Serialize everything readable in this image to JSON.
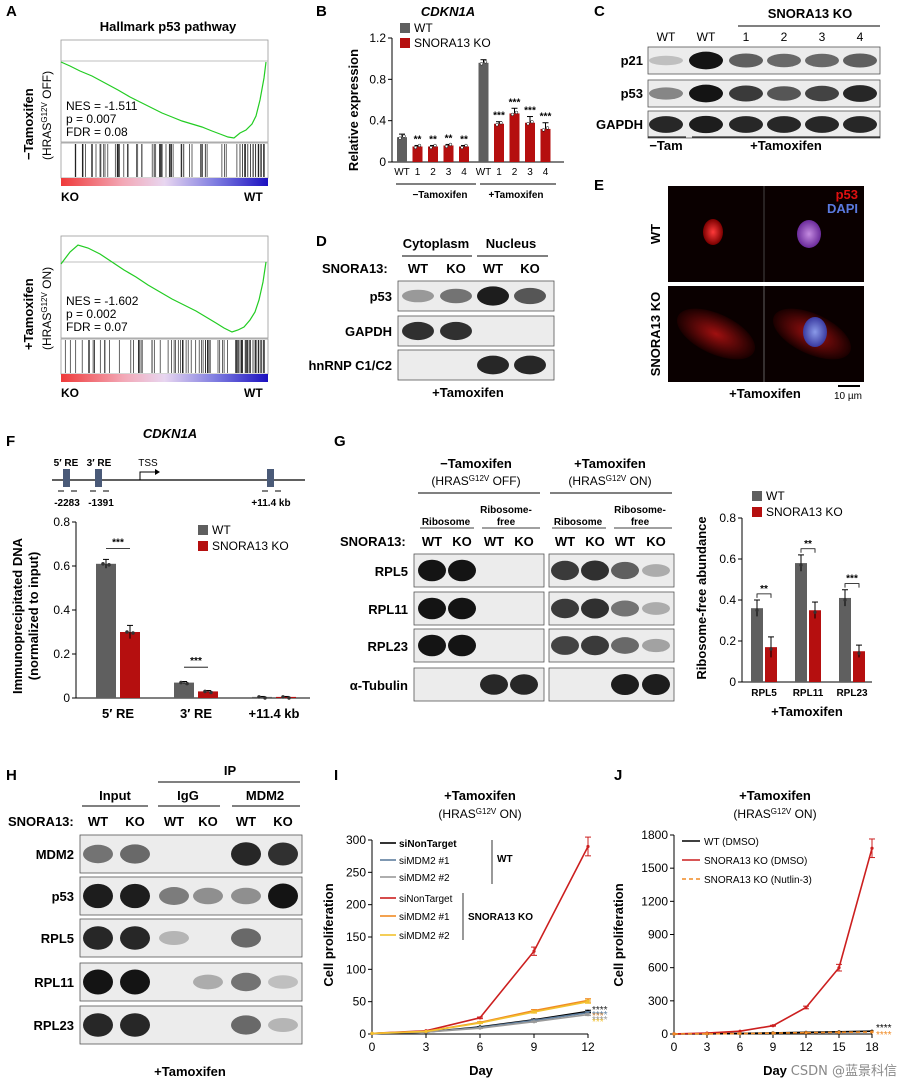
{
  "panels": {
    "A": {
      "letter": "A",
      "title": "Hallmark p53 pathway",
      "top": {
        "side_label_1": "−Tamoxifen",
        "side_label_2": "(HRAS",
        "side_label_sup": "G12V",
        "side_label_3": " OFF)",
        "nes": "NES = -1.511",
        "p": "p = 0.007",
        "fdr": "FDR = 0.08"
      },
      "bottom": {
        "side_label_1": "+Tamoxifen",
        "side_label_2": "(HRAS",
        "side_label_sup": "G12V",
        "side_label_3": " ON)",
        "nes": "NES = -1.602",
        "p": "p = 0.002",
        "fdr": "FDR = 0.07"
      },
      "ko": "KO",
      "wt": "WT"
    },
    "B": {
      "letter": "B",
      "gene": "CDKN1A",
      "ylabel": "Relative expression",
      "legend": [
        "WT",
        "SNORA13 KO"
      ],
      "group_labels": [
        "−Tamoxifen",
        "+Tamoxifen"
      ],
      "sig_minus": "**",
      "sig_plus": "***"
    },
    "C": {
      "letter": "C",
      "header_ko": "SNORA13 KO",
      "lanes": [
        "WT",
        "WT",
        "1",
        "2",
        "3",
        "4"
      ],
      "rows": [
        "p21",
        "p53",
        "GAPDH"
      ],
      "minus_tam": "−Tam",
      "plus_tam": "+Tamoxifen"
    },
    "D": {
      "letter": "D",
      "cytoplasm": "Cytoplasm",
      "nucleus": "Nucleus",
      "snora13": "SNORA13:",
      "lanes": [
        "WT",
        "KO",
        "WT",
        "KO"
      ],
      "rows": [
        "p53",
        "GAPDH",
        "hnRNP C1/C2"
      ],
      "condition": "+Tamoxifen"
    },
    "E": {
      "letter": "E",
      "wt": "WT",
      "ko": "SNORA13 KO",
      "p53": "p53",
      "dapi": "DAPI",
      "condition": "+Tamoxifen",
      "scale": "10 µm"
    },
    "F": {
      "letter": "F",
      "gene": "CDKN1A",
      "re5": "5′ RE",
      "re3": "3′ RE",
      "tss": "TSS",
      "pos1": "-2283",
      "pos2": "-1391",
      "pos3": "+11.4 kb",
      "ylabel1": "Immunoprecipitated DNA",
      "ylabel2": "(normalized to input)",
      "legend": [
        "WT",
        "SNORA13 KO"
      ],
      "sig": "***"
    },
    "G": {
      "letter": "G",
      "minus_title": "−Tamoxifen",
      "minus_sub": "(HRAS",
      "plus_title": "+Tamoxifen",
      "plus_sub": "(HRAS",
      "sup": "G12V",
      "off": " OFF)",
      "on": " ON)",
      "ribosome": "Ribosome",
      "ribofree1": "Ribosome-",
      "ribofree2": "free",
      "snora13": "SNORA13:",
      "lanes": [
        "WT",
        "KO",
        "WT",
        "KO"
      ],
      "rows": [
        "RPL5",
        "RPL11",
        "RPL23",
        "α-Tubulin"
      ],
      "ylabel": "Ribosome-free abundance",
      "legend": [
        "WT",
        "SNORA13 KO"
      ],
      "condition": "+Tamoxifen",
      "sig": [
        "**",
        "**",
        "***"
      ]
    },
    "H": {
      "letter": "H",
      "ip": "IP",
      "input": "Input",
      "igg": "IgG",
      "mdm2": "MDM2",
      "snora13": "SNORA13:",
      "lanes": [
        "WT",
        "KO",
        "WT",
        "KO",
        "WT",
        "KO"
      ],
      "rows": [
        "MDM2",
        "p53",
        "RPL5",
        "RPL11",
        "RPL23"
      ],
      "condition": "+Tamoxifen"
    },
    "I": {
      "letter": "I",
      "title": "+Tamoxifen",
      "sub": "(HRAS",
      "sup": "G12V",
      "on": " ON)",
      "xlabel": "Day",
      "ylabel": "Cell proliferation",
      "group_wt": "WT",
      "group_ko": "SNORA13 KO"
    },
    "J": {
      "letter": "J",
      "title": "+Tamoxifen",
      "sub": "(HRAS",
      "sup": "G12V",
      "on": " ON)",
      "xlabel": "Day",
      "ylabel": "Cell proliferation",
      "watermark": "CSDN @蓝景科信"
    }
  },
  "colors": {
    "wt": "#5f5f5f",
    "ko": "#b50f0f",
    "green": "#22cc22",
    "orange": "#f08a24",
    "yellow": "#f2c12e"
  },
  "chart_data": [
    {
      "panel": "B",
      "type": "bar",
      "categories": [
        "WT",
        "1",
        "2",
        "3",
        "4",
        "WT",
        "1",
        "2",
        "3",
        "4"
      ],
      "values": [
        0.24,
        0.15,
        0.15,
        0.16,
        0.15,
        0.96,
        0.37,
        0.47,
        0.38,
        0.32
      ],
      "groups": [
        "−Tamoxifen",
        "+Tamoxifen"
      ],
      "ylabel": "Relative expression",
      "ylim": [
        0,
        1.2
      ],
      "yticks": [
        "0",
        "0.4",
        "0.8",
        "1.2"
      ]
    },
    {
      "panel": "F",
      "type": "bar",
      "categories": [
        "5′ RE",
        "3′ RE",
        "+11.4 kb"
      ],
      "series": [
        {
          "name": "WT",
          "values": [
            0.61,
            0.07,
            0.005
          ]
        },
        {
          "name": "SNORA13 KO",
          "values": [
            0.3,
            0.03,
            0.005
          ]
        }
      ],
      "ylim": [
        0,
        0.8
      ],
      "yticks": [
        "0",
        "0.2",
        "0.4",
        "0.6",
        "0.8"
      ]
    },
    {
      "panel": "G",
      "type": "bar",
      "categories": [
        "RPL5",
        "RPL11",
        "RPL23"
      ],
      "series": [
        {
          "name": "WT",
          "values": [
            0.36,
            0.58,
            0.41
          ]
        },
        {
          "name": "SNORA13 KO",
          "values": [
            0.17,
            0.35,
            0.15
          ]
        }
      ],
      "ylim": [
        0,
        0.8
      ],
      "yticks": [
        "0",
        "0.2",
        "0.4",
        "0.6",
        "0.8"
      ]
    },
    {
      "panel": "I",
      "type": "line",
      "x": [
        0,
        3,
        6,
        9,
        12
      ],
      "series": [
        {
          "name": "siNonTarget",
          "group": "WT",
          "color": "#000000",
          "values": [
            1,
            3,
            11,
            22,
            35
          ]
        },
        {
          "name": "siMDM2 #1",
          "group": "WT",
          "color": "#5f7f9f",
          "values": [
            1,
            3,
            10,
            21,
            33
          ]
        },
        {
          "name": "siMDM2 #2",
          "group": "WT",
          "color": "#9a9a9a",
          "values": [
            1,
            3,
            9,
            19,
            30
          ]
        },
        {
          "name": "siNonTarget",
          "group": "SNORA13 KO",
          "color": "#cc1f1f",
          "values": [
            1,
            5,
            25,
            128,
            290
          ]
        },
        {
          "name": "siMDM2 #1",
          "group": "SNORA13 KO",
          "color": "#f08a24",
          "values": [
            1,
            4,
            18,
            36,
            52
          ]
        },
        {
          "name": "siMDM2 #2",
          "group": "SNORA13 KO",
          "color": "#f2c12e",
          "values": [
            1,
            4,
            17,
            34,
            50
          ]
        }
      ],
      "ylim": [
        0,
        300
      ],
      "yticks": [
        "0",
        "50",
        "100",
        "150",
        "200",
        "250",
        "300"
      ],
      "xticks": [
        "0",
        "3",
        "6",
        "9",
        "12"
      ],
      "xlabel": "Day",
      "ylabel": "Cell proliferation"
    },
    {
      "panel": "J",
      "type": "line",
      "x": [
        0,
        3,
        6,
        9,
        12,
        15,
        18
      ],
      "series": [
        {
          "name": "WT (DMSO)",
          "color": "#000000",
          "values": [
            1,
            2,
            5,
            10,
            15,
            20,
            25
          ]
        },
        {
          "name": "SNORA13 KO (DMSO)",
          "color": "#cc1f1f",
          "values": [
            1,
            8,
            25,
            75,
            240,
            600,
            1680
          ]
        },
        {
          "name": "SNORA13 KO (Nutlin-3)",
          "color": "#f08a24",
          "values": [
            1,
            2,
            4,
            8,
            12,
            15,
            18
          ]
        }
      ],
      "ylim": [
        0,
        1800
      ],
      "yticks": [
        "0",
        "300",
        "600",
        "900",
        "1200",
        "1500",
        "1800"
      ],
      "xticks": [
        "0",
        "3",
        "6",
        "9",
        "12",
        "15",
        "18"
      ],
      "xlabel": "Day",
      "ylabel": "Cell proliferation"
    }
  ]
}
